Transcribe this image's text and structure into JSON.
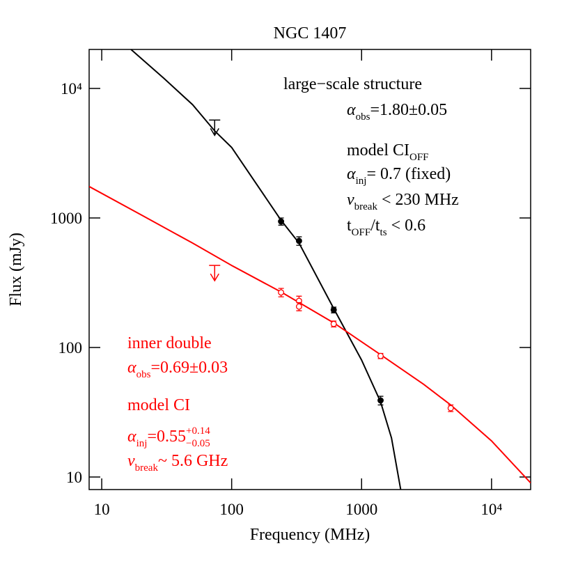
{
  "chart_data": {
    "type": "scatter",
    "title": "NGC 1407",
    "x_label": "Frequency (MHz)",
    "y_label": "Flux (mJy)",
    "log_x": true,
    "log_y": true,
    "xlim": [
      8,
      20000
    ],
    "ylim": [
      8,
      20000
    ],
    "xticks": [
      10,
      100,
      1000,
      {
        "value": 10000,
        "label": "10⁴"
      }
    ],
    "yticks": [
      10,
      100,
      1000,
      {
        "value": 10000,
        "label": "10⁴"
      }
    ],
    "series": [
      {
        "color": "#000000",
        "marker": "filled",
        "x": [
          240,
          330,
          610,
          1400
        ],
        "values": [
          940,
          665,
          195,
          39
        ],
        "errors": [
          60,
          50,
          10,
          3
        ]
      },
      {
        "color": "#000000",
        "upper_limit": true,
        "x": [
          74
        ],
        "values": [
          5700
        ]
      },
      {
        "color": "#ff0000",
        "marker": "open",
        "x": [
          240,
          330,
          330,
          610,
          1400,
          4850
        ],
        "values": [
          266,
          229,
          207,
          152,
          86,
          34
        ],
        "errors": [
          20,
          20,
          15,
          8,
          4,
          2
        ]
      },
      {
        "color": "#ff0000",
        "upper_limit": true,
        "x": [
          74
        ],
        "values": [
          430
        ]
      }
    ],
    "curves": [
      {
        "color": "#000000",
        "x": [
          16.8,
          30,
          50,
          74,
          100,
          240,
          330,
          610,
          1000,
          1400,
          1700,
          2000
        ],
        "values": [
          20000,
          12000,
          7500,
          4700,
          3500,
          960,
          640,
          200,
          80,
          38,
          20,
          8
        ]
      },
      {
        "color": "#ff0000",
        "x": [
          8,
          20,
          50,
          100,
          240,
          610,
          1400,
          3000,
          4850,
          10000,
          20000
        ],
        "values": [
          1750,
          1060,
          640,
          430,
          268,
          155,
          88,
          52,
          36,
          19,
          9
        ]
      }
    ],
    "annotations": [
      {
        "color": "#000000",
        "parts": [
          {
            "text": "large−scale structure"
          }
        ]
      },
      {
        "color": "#000000",
        "parts": [
          {
            "text": "α",
            "style": "italic"
          },
          {
            "text": "obs",
            "style": "sub"
          },
          {
            "text": "=1.80±0.05"
          }
        ]
      },
      {
        "color": "#000000",
        "parts": [
          {
            "text": "model CI"
          },
          {
            "text": "OFF",
            "style": "sub"
          }
        ]
      },
      {
        "color": "#000000",
        "parts": [
          {
            "text": "α",
            "style": "italic"
          },
          {
            "text": "inj",
            "style": "sub"
          },
          {
            "text": "= 0.7 (fixed)"
          }
        ]
      },
      {
        "color": "#000000",
        "parts": [
          {
            "text": "ν",
            "style": "italic"
          },
          {
            "text": "break",
            "style": "sub"
          },
          {
            "text": " < 230 MHz"
          }
        ]
      },
      {
        "color": "#000000",
        "parts": [
          {
            "text": "t"
          },
          {
            "text": "OFF",
            "style": "sub"
          },
          {
            "text": "/t"
          },
          {
            "text": "ts",
            "style": "sub"
          },
          {
            "text": " < 0.6"
          }
        ]
      },
      {
        "color": "#ff0000",
        "parts": [
          {
            "text": "inner double"
          }
        ]
      },
      {
        "color": "#ff0000",
        "parts": [
          {
            "text": "α",
            "style": "italic"
          },
          {
            "text": "obs",
            "style": "sub"
          },
          {
            "text": "=0.69±0.03"
          }
        ]
      },
      {
        "color": "#ff0000",
        "parts": [
          {
            "text": "model CI"
          }
        ]
      },
      {
        "color": "#ff0000",
        "parts": [
          {
            "text": "α",
            "style": "italic"
          },
          {
            "text": "inj",
            "style": "sub"
          },
          {
            "text": "=0.55"
          },
          {
            "text": "+0.14",
            "style": "sup"
          },
          {
            "text": "−0.05",
            "style": "sub"
          }
        ]
      },
      {
        "color": "#ff0000",
        "parts": [
          {
            "text": "ν",
            "style": "italic"
          },
          {
            "text": "break",
            "style": "sub"
          },
          {
            "text": "~ 5.6 GHz"
          }
        ]
      }
    ]
  }
}
